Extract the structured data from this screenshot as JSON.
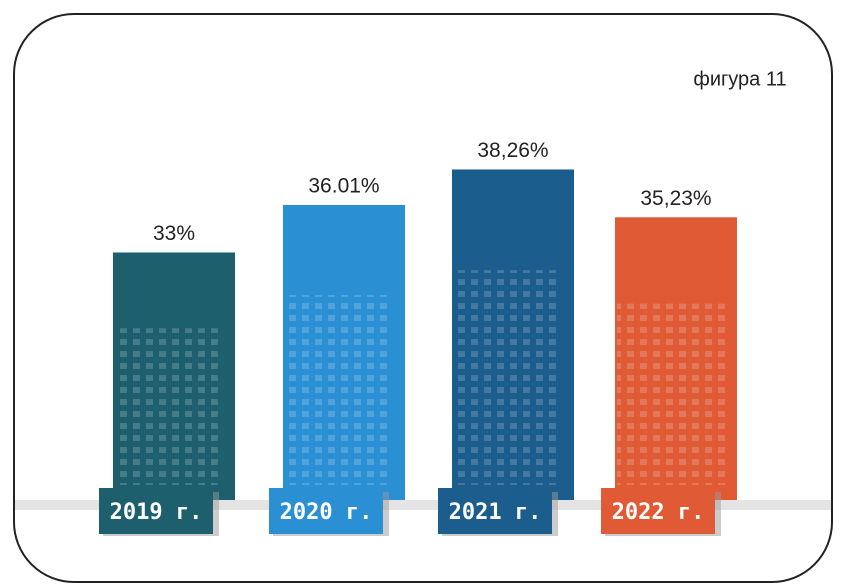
{
  "chart_data": {
    "type": "bar",
    "title": "фигура 11",
    "categories": [
      "2019 г.",
      "2020 г.",
      "2021 г.",
      "2022 г."
    ],
    "values": [
      33,
      36.01,
      38.26,
      35.23
    ],
    "value_labels": [
      "33%",
      "36.01%",
      "38,26%",
      "35,23%"
    ],
    "colors": [
      "#1d5f6d",
      "#2b8fd3",
      "#1b5d8c",
      "#e05a36"
    ],
    "ylim": [
      17,
      40
    ]
  }
}
